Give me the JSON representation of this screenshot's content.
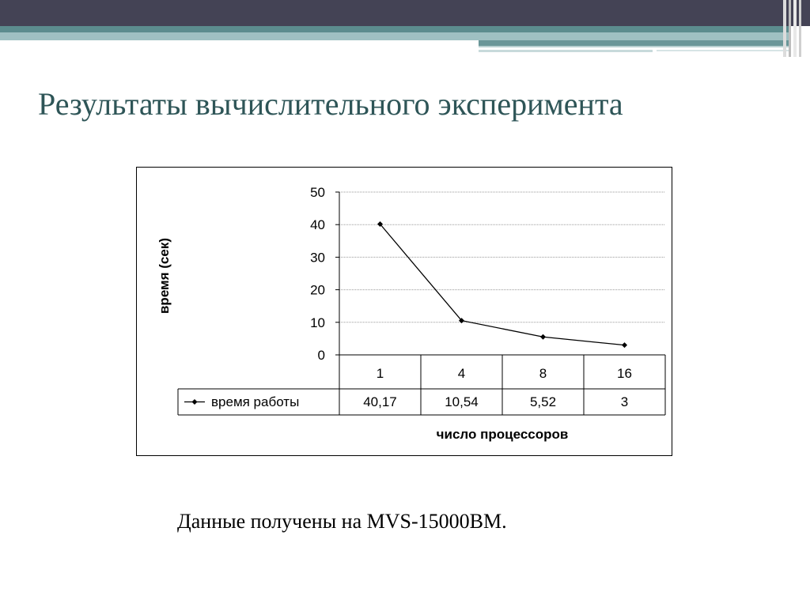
{
  "slide": {
    "title": "Результаты вычислительного эксперимента",
    "caption": "Данные получены на MVS-15000BM."
  },
  "theme": {
    "title_color": "#2e5557",
    "bar_dark": "#444355",
    "teal": "#5c8c8e"
  },
  "chart_data": {
    "type": "line",
    "title": "",
    "xlabel": "число процессоров",
    "ylabel": "время (сек)",
    "categories": [
      "1",
      "4",
      "8",
      "16"
    ],
    "series": [
      {
        "name": "время работы",
        "values": [
          40.17,
          10.54,
          5.52,
          3
        ],
        "labels": [
          "40,17",
          "10,54",
          "5,52",
          "3"
        ]
      }
    ],
    "ylim": [
      0,
      50
    ],
    "yticks": [
      0,
      10,
      20,
      30,
      40,
      50
    ],
    "grid": true,
    "legend": "data-table"
  }
}
